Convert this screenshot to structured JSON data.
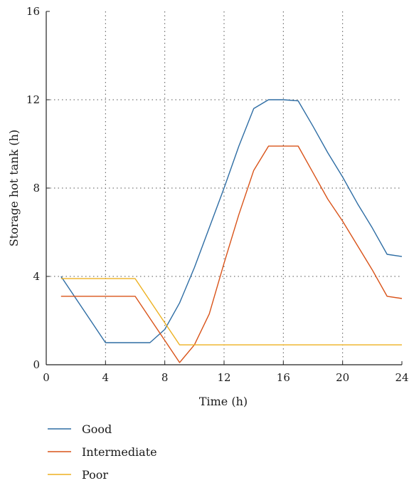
{
  "chart_data": {
    "type": "line",
    "title": "",
    "xlabel": "Time (h)",
    "ylabel": "Storage hot tank (h)",
    "xlim": [
      0,
      24
    ],
    "ylim": [
      0,
      16
    ],
    "xticks": [
      0,
      4,
      8,
      12,
      16,
      20,
      24
    ],
    "yticks": [
      0,
      4,
      8,
      12,
      16
    ],
    "grid": true,
    "legend": "bottom-left",
    "series": [
      {
        "name": "Good",
        "color": "#2e6da4",
        "x": [
          1,
          4,
          5,
          6,
          7,
          8,
          9,
          10,
          11,
          12,
          13,
          14,
          15,
          16,
          17,
          18,
          19,
          20,
          21,
          22,
          23,
          24
        ],
        "y": [
          4.0,
          1.0,
          1.0,
          1.0,
          1.0,
          1.6,
          2.8,
          4.4,
          6.2,
          8.0,
          9.9,
          11.6,
          12.0,
          12.0,
          11.95,
          10.8,
          9.6,
          8.5,
          7.3,
          6.2,
          5.0,
          4.9
        ]
      },
      {
        "name": "Intermediate",
        "color": "#d95319",
        "x": [
          1,
          6,
          7,
          8,
          9,
          10,
          11,
          12,
          13,
          14,
          15,
          16,
          17,
          18,
          19,
          20,
          21,
          22,
          23,
          24
        ],
        "y": [
          3.1,
          3.1,
          2.1,
          1.1,
          0.1,
          0.9,
          2.3,
          4.6,
          6.8,
          8.8,
          9.9,
          9.9,
          9.9,
          8.7,
          7.5,
          6.5,
          5.4,
          4.3,
          3.1,
          3.0
        ]
      },
      {
        "name": "Poor",
        "color": "#edb120",
        "x": [
          1,
          6,
          9,
          24
        ],
        "y": [
          3.9,
          3.9,
          0.9,
          0.9
        ]
      }
    ]
  }
}
